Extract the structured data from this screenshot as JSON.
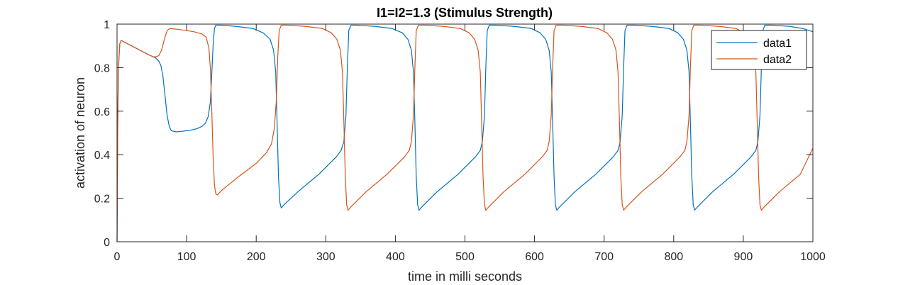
{
  "chart_data": {
    "type": "line",
    "title": "I1=I2=1.3 (Stimulus Strength)",
    "xlabel": "time in milli seconds",
    "ylabel": "activation of neuron",
    "xlim": [
      0,
      1000
    ],
    "ylim": [
      0,
      1
    ],
    "x_ticks": [
      0,
      100,
      200,
      300,
      400,
      500,
      600,
      700,
      800,
      900,
      1000
    ],
    "y_ticks": [
      0,
      0.2,
      0.4,
      0.6,
      0.8,
      1
    ],
    "legend_position": "top-right",
    "series": [
      {
        "name": "data1",
        "color": "#0072BD",
        "points": [
          [
            0,
            0
          ],
          [
            1,
            0.55
          ],
          [
            2,
            0.8
          ],
          [
            4,
            0.91
          ],
          [
            6,
            0.925
          ],
          [
            15,
            0.91
          ],
          [
            30,
            0.885
          ],
          [
            45,
            0.86
          ],
          [
            55,
            0.845
          ],
          [
            60,
            0.83
          ],
          [
            63,
            0.81
          ],
          [
            66,
            0.76
          ],
          [
            69,
            0.67
          ],
          [
            72,
            0.58
          ],
          [
            75,
            0.53
          ],
          [
            78,
            0.51
          ],
          [
            85,
            0.505
          ],
          [
            95,
            0.508
          ],
          [
            105,
            0.512
          ],
          [
            115,
            0.52
          ],
          [
            122,
            0.53
          ],
          [
            127,
            0.545
          ],
          [
            131,
            0.575
          ],
          [
            134,
            0.64
          ],
          [
            136,
            0.76
          ],
          [
            138,
            0.9
          ],
          [
            140,
            0.98
          ],
          [
            142,
            0.995
          ],
          [
            150,
            0.995
          ],
          [
            170,
            0.99
          ],
          [
            195,
            0.98
          ],
          [
            210,
            0.96
          ],
          [
            220,
            0.93
          ],
          [
            225,
            0.88
          ],
          [
            228,
            0.78
          ],
          [
            230,
            0.55
          ],
          [
            232,
            0.3
          ],
          [
            234,
            0.18
          ],
          [
            236,
            0.155
          ],
          [
            240,
            0.17
          ],
          [
            260,
            0.23
          ],
          [
            290,
            0.31
          ],
          [
            315,
            0.39
          ],
          [
            322,
            0.42
          ],
          [
            326,
            0.46
          ],
          [
            329,
            0.58
          ],
          [
            331,
            0.8
          ],
          [
            333,
            0.97
          ],
          [
            336,
            0.995
          ],
          [
            345,
            0.995
          ],
          [
            370,
            0.99
          ],
          [
            395,
            0.98
          ],
          [
            410,
            0.96
          ],
          [
            418,
            0.93
          ],
          [
            423,
            0.88
          ],
          [
            426,
            0.78
          ],
          [
            428,
            0.55
          ],
          [
            430,
            0.3
          ],
          [
            432,
            0.17
          ],
          [
            434,
            0.145
          ],
          [
            438,
            0.16
          ],
          [
            460,
            0.23
          ],
          [
            490,
            0.31
          ],
          [
            515,
            0.39
          ],
          [
            522,
            0.42
          ],
          [
            525,
            0.46
          ],
          [
            528,
            0.58
          ],
          [
            530,
            0.8
          ],
          [
            532,
            0.97
          ],
          [
            535,
            0.995
          ],
          [
            545,
            0.995
          ],
          [
            570,
            0.99
          ],
          [
            595,
            0.98
          ],
          [
            608,
            0.96
          ],
          [
            616,
            0.93
          ],
          [
            621,
            0.88
          ],
          [
            624,
            0.78
          ],
          [
            626,
            0.55
          ],
          [
            628,
            0.3
          ],
          [
            630,
            0.17
          ],
          [
            632,
            0.145
          ],
          [
            636,
            0.16
          ],
          [
            658,
            0.23
          ],
          [
            688,
            0.31
          ],
          [
            713,
            0.39
          ],
          [
            720,
            0.42
          ],
          [
            723,
            0.46
          ],
          [
            726,
            0.58
          ],
          [
            728,
            0.8
          ],
          [
            730,
            0.97
          ],
          [
            733,
            0.995
          ],
          [
            743,
            0.995
          ],
          [
            768,
            0.99
          ],
          [
            793,
            0.98
          ],
          [
            806,
            0.96
          ],
          [
            814,
            0.93
          ],
          [
            819,
            0.88
          ],
          [
            822,
            0.78
          ],
          [
            824,
            0.55
          ],
          [
            826,
            0.3
          ],
          [
            828,
            0.17
          ],
          [
            830,
            0.145
          ],
          [
            834,
            0.16
          ],
          [
            856,
            0.23
          ],
          [
            886,
            0.31
          ],
          [
            911,
            0.39
          ],
          [
            918,
            0.42
          ],
          [
            921,
            0.46
          ],
          [
            924,
            0.58
          ],
          [
            926,
            0.8
          ],
          [
            928,
            0.97
          ],
          [
            931,
            0.995
          ],
          [
            941,
            0.995
          ],
          [
            966,
            0.99
          ],
          [
            985,
            0.98
          ],
          [
            1000,
            0.965
          ]
        ]
      },
      {
        "name": "data2",
        "color": "#D95319",
        "points": [
          [
            0,
            0
          ],
          [
            1,
            0.55
          ],
          [
            2,
            0.8
          ],
          [
            4,
            0.91
          ],
          [
            6,
            0.925
          ],
          [
            15,
            0.91
          ],
          [
            30,
            0.885
          ],
          [
            45,
            0.86
          ],
          [
            52,
            0.85
          ],
          [
            56,
            0.85
          ],
          [
            60,
            0.855
          ],
          [
            64,
            0.88
          ],
          [
            68,
            0.93
          ],
          [
            72,
            0.97
          ],
          [
            76,
            0.98
          ],
          [
            90,
            0.975
          ],
          [
            110,
            0.965
          ],
          [
            122,
            0.955
          ],
          [
            128,
            0.94
          ],
          [
            132,
            0.89
          ],
          [
            134,
            0.8
          ],
          [
            136,
            0.62
          ],
          [
            138,
            0.4
          ],
          [
            140,
            0.26
          ],
          [
            142,
            0.22
          ],
          [
            144,
            0.215
          ],
          [
            150,
            0.235
          ],
          [
            175,
            0.3
          ],
          [
            200,
            0.36
          ],
          [
            215,
            0.41
          ],
          [
            222,
            0.45
          ],
          [
            226,
            0.52
          ],
          [
            229,
            0.65
          ],
          [
            231,
            0.85
          ],
          [
            233,
            0.97
          ],
          [
            236,
            0.995
          ],
          [
            245,
            0.995
          ],
          [
            270,
            0.99
          ],
          [
            295,
            0.98
          ],
          [
            308,
            0.96
          ],
          [
            316,
            0.93
          ],
          [
            321,
            0.88
          ],
          [
            324,
            0.78
          ],
          [
            326,
            0.55
          ],
          [
            328,
            0.3
          ],
          [
            330,
            0.17
          ],
          [
            332,
            0.145
          ],
          [
            336,
            0.16
          ],
          [
            358,
            0.23
          ],
          [
            388,
            0.31
          ],
          [
            413,
            0.39
          ],
          [
            420,
            0.42
          ],
          [
            423,
            0.46
          ],
          [
            426,
            0.58
          ],
          [
            428,
            0.8
          ],
          [
            430,
            0.97
          ],
          [
            433,
            0.995
          ],
          [
            443,
            0.995
          ],
          [
            468,
            0.99
          ],
          [
            493,
            0.98
          ],
          [
            506,
            0.96
          ],
          [
            514,
            0.93
          ],
          [
            519,
            0.88
          ],
          [
            522,
            0.78
          ],
          [
            524,
            0.55
          ],
          [
            526,
            0.3
          ],
          [
            528,
            0.17
          ],
          [
            530,
            0.145
          ],
          [
            534,
            0.16
          ],
          [
            556,
            0.23
          ],
          [
            586,
            0.31
          ],
          [
            611,
            0.39
          ],
          [
            618,
            0.42
          ],
          [
            621,
            0.46
          ],
          [
            624,
            0.58
          ],
          [
            626,
            0.8
          ],
          [
            628,
            0.97
          ],
          [
            631,
            0.995
          ],
          [
            641,
            0.995
          ],
          [
            666,
            0.99
          ],
          [
            691,
            0.98
          ],
          [
            704,
            0.96
          ],
          [
            712,
            0.93
          ],
          [
            717,
            0.88
          ],
          [
            720,
            0.78
          ],
          [
            722,
            0.55
          ],
          [
            724,
            0.3
          ],
          [
            726,
            0.17
          ],
          [
            728,
            0.145
          ],
          [
            732,
            0.16
          ],
          [
            754,
            0.23
          ],
          [
            784,
            0.31
          ],
          [
            809,
            0.39
          ],
          [
            816,
            0.42
          ],
          [
            819,
            0.46
          ],
          [
            822,
            0.58
          ],
          [
            824,
            0.8
          ],
          [
            826,
            0.97
          ],
          [
            829,
            0.995
          ],
          [
            839,
            0.995
          ],
          [
            864,
            0.99
          ],
          [
            889,
            0.98
          ],
          [
            902,
            0.96
          ],
          [
            910,
            0.93
          ],
          [
            915,
            0.88
          ],
          [
            918,
            0.78
          ],
          [
            920,
            0.55
          ],
          [
            922,
            0.3
          ],
          [
            924,
            0.17
          ],
          [
            926,
            0.145
          ],
          [
            930,
            0.16
          ],
          [
            952,
            0.23
          ],
          [
            982,
            0.31
          ],
          [
            1000,
            0.43
          ]
        ]
      }
    ]
  }
}
